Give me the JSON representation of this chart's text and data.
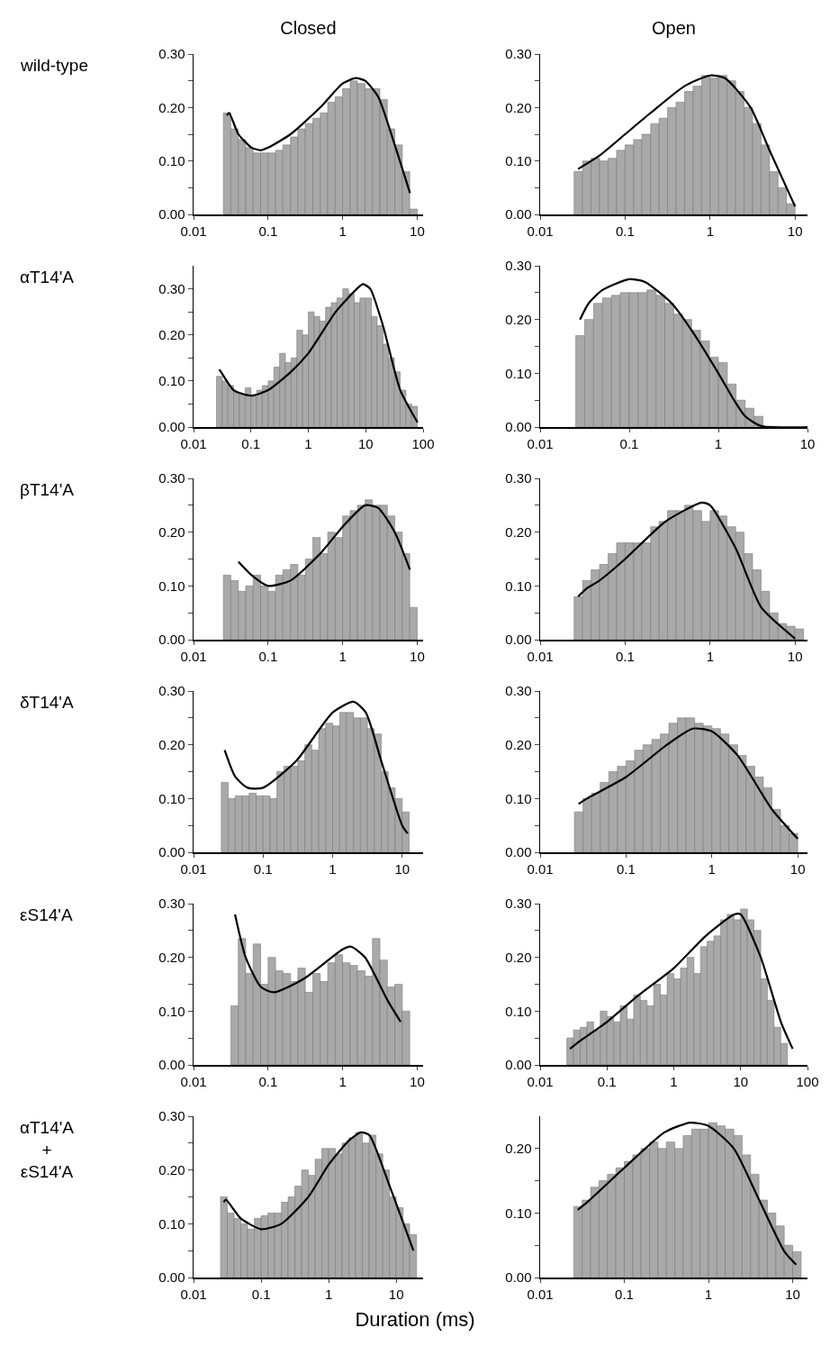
{
  "chart_data": [
    {
      "type": "histogram",
      "title": "Closed",
      "ylabel": "wild-type",
      "log": "x",
      "grid": false,
      "color": "#a9a9a9",
      "bins": [
        0.0251,
        0.0316,
        0.0398,
        0.0501,
        0.0631,
        0.0794,
        0.1,
        0.126,
        0.158,
        0.2,
        0.251,
        0.316,
        0.398,
        0.501,
        0.631,
        0.794,
        1,
        1.26,
        1.58,
        2,
        2.51,
        3.16,
        3.98,
        5.01,
        6.31,
        7.94,
        10
      ],
      "values": [
        0.19,
        0.16,
        0.14,
        0.125,
        0.115,
        0.115,
        0.115,
        0.12,
        0.13,
        0.145,
        0.16,
        0.17,
        0.18,
        0.19,
        0.21,
        0.22,
        0.235,
        0.25,
        0.245,
        0.235,
        0.235,
        0.215,
        0.16,
        0.13,
        0.08,
        0.01
      ],
      "series": [
        {
          "type": "line",
          "color": "#000000",
          "x": [
            0.028,
            0.03,
            0.04,
            0.06,
            0.08,
            0.1,
            0.2,
            0.5,
            1,
            1.5,
            2,
            3,
            5,
            8
          ],
          "values": [
            0.185,
            0.19,
            0.15,
            0.125,
            0.12,
            0.125,
            0.15,
            0.2,
            0.245,
            0.255,
            0.25,
            0.22,
            0.13,
            0.04
          ]
        }
      ],
      "xlim": [
        0.01,
        12
      ],
      "xticks": [
        0.01,
        0.1,
        1,
        10
      ],
      "ylim": [
        0,
        0.3
      ],
      "yticks": [
        {
          "value": 0,
          "label": "0.00"
        },
        {
          "value": 0.05,
          "label": null
        },
        {
          "value": 0.1,
          "label": "0.10"
        },
        {
          "value": 0.15,
          "label": null
        },
        {
          "value": 0.2,
          "label": "0.20"
        },
        {
          "value": 0.25,
          "label": null
        },
        {
          "value": 0.3,
          "label": "0.30"
        }
      ]
    },
    {
      "type": "histogram",
      "title": "Open",
      "log": "x",
      "grid": false,
      "color": "#a9a9a9",
      "bins": [
        0.0251,
        0.0316,
        0.0398,
        0.0501,
        0.0631,
        0.0794,
        0.1,
        0.126,
        0.158,
        0.2,
        0.251,
        0.316,
        0.398,
        0.501,
        0.631,
        0.794,
        1,
        1.26,
        1.58,
        2,
        2.51,
        3.16,
        3.98,
        5.01,
        6.31,
        7.94,
        10
      ],
      "values": [
        0.08,
        0.1,
        0.105,
        0.1,
        0.105,
        0.12,
        0.13,
        0.14,
        0.15,
        0.17,
        0.18,
        0.2,
        0.21,
        0.23,
        0.24,
        0.26,
        0.255,
        0.26,
        0.25,
        0.23,
        0.2,
        0.17,
        0.13,
        0.08,
        0.05,
        0.02
      ],
      "series": [
        {
          "type": "line",
          "color": "#000000",
          "x": [
            0.028,
            0.05,
            0.1,
            0.2,
            0.5,
            1,
            1.5,
            3,
            5,
            10
          ],
          "values": [
            0.085,
            0.11,
            0.15,
            0.19,
            0.24,
            0.26,
            0.255,
            0.2,
            0.12,
            0.015
          ]
        }
      ],
      "xlim": [
        0.01,
        14
      ],
      "xticks": [
        0.01,
        0.1,
        1,
        10
      ],
      "ylim": [
        0,
        0.3
      ],
      "yticks": [
        {
          "value": 0,
          "label": "0.00"
        },
        {
          "value": 0.05,
          "label": null
        },
        {
          "value": 0.1,
          "label": "0.10"
        },
        {
          "value": 0.15,
          "label": null
        },
        {
          "value": 0.2,
          "label": "0.20"
        },
        {
          "value": 0.25,
          "label": null
        },
        {
          "value": 0.3,
          "label": "0.30"
        }
      ]
    },
    {
      "type": "histogram",
      "ylabel": "αT14'A",
      "log": "x",
      "grid": false,
      "color": "#a9a9a9",
      "bins": [
        0.0251,
        0.0316,
        0.0398,
        0.0501,
        0.0631,
        0.0794,
        0.1,
        0.126,
        0.158,
        0.2,
        0.251,
        0.316,
        0.398,
        0.501,
        0.631,
        0.794,
        1,
        1.26,
        1.58,
        2,
        2.51,
        3.16,
        3.98,
        5.01,
        6.31,
        7.94,
        10,
        12.6,
        15.8,
        20,
        25.1,
        31.6,
        39.8,
        50.1,
        63.1,
        79.4
      ],
      "values": [
        0.11,
        0.1,
        0.09,
        0.075,
        0.07,
        0.085,
        0.07,
        0.08,
        0.09,
        0.1,
        0.13,
        0.16,
        0.14,
        0.15,
        0.21,
        0.2,
        0.25,
        0.24,
        0.23,
        0.26,
        0.27,
        0.28,
        0.3,
        0.29,
        0.27,
        0.28,
        0.28,
        0.24,
        0.22,
        0.18,
        0.15,
        0.12,
        0.08,
        0.05,
        0.045
      ],
      "series": [
        {
          "type": "line",
          "color": "#000000",
          "x": [
            0.028,
            0.03,
            0.05,
            0.1,
            0.2,
            0.5,
            1,
            3,
            7,
            9,
            12,
            20,
            40,
            80
          ],
          "values": [
            0.125,
            0.12,
            0.08,
            0.068,
            0.08,
            0.12,
            0.16,
            0.25,
            0.3,
            0.31,
            0.3,
            0.22,
            0.08,
            0.01
          ]
        }
      ],
      "xlim": [
        0.01,
        100
      ],
      "xticks": [
        0.01,
        0.1,
        1,
        10,
        100
      ],
      "ylim": [
        0,
        0.35
      ],
      "yticks": [
        {
          "value": 0,
          "label": "0.00"
        },
        {
          "value": 0.05,
          "label": null
        },
        {
          "value": 0.1,
          "label": "0.10"
        },
        {
          "value": 0.15,
          "label": null
        },
        {
          "value": 0.2,
          "label": "0.20"
        },
        {
          "value": 0.25,
          "label": null
        },
        {
          "value": 0.3,
          "label": "0.30"
        }
      ]
    },
    {
      "type": "histogram",
      "log": "x",
      "grid": false,
      "color": "#a9a9a9",
      "bins": [
        0.0251,
        0.0316,
        0.0398,
        0.0501,
        0.0631,
        0.0794,
        0.1,
        0.126,
        0.158,
        0.2,
        0.251,
        0.316,
        0.398,
        0.501,
        0.631,
        0.794,
        1,
        1.26,
        1.58,
        2,
        2.51,
        3.16
      ],
      "values": [
        0.17,
        0.2,
        0.23,
        0.24,
        0.245,
        0.25,
        0.25,
        0.25,
        0.255,
        0.245,
        0.23,
        0.21,
        0.2,
        0.18,
        0.16,
        0.13,
        0.12,
        0.08,
        0.05,
        0.035,
        0.02
      ],
      "series": [
        {
          "type": "line",
          "color": "#000000",
          "x": [
            0.028,
            0.035,
            0.05,
            0.1,
            0.15,
            0.3,
            0.5,
            1,
            1.5,
            2,
            3,
            10
          ],
          "values": [
            0.2,
            0.23,
            0.255,
            0.275,
            0.27,
            0.23,
            0.18,
            0.1,
            0.05,
            0.02,
            0.002,
            0
          ]
        }
      ],
      "xlim": [
        0.01,
        10
      ],
      "xticks": [
        0.01,
        0.1,
        1,
        10
      ],
      "ylim": [
        0,
        0.3
      ],
      "yticks": [
        {
          "value": 0,
          "label": "0.00"
        },
        {
          "value": 0.05,
          "label": null
        },
        {
          "value": 0.1,
          "label": "0.10"
        },
        {
          "value": 0.15,
          "label": null
        },
        {
          "value": 0.2,
          "label": "0.20"
        },
        {
          "value": 0.25,
          "label": null
        },
        {
          "value": 0.3,
          "label": "0.30"
        }
      ]
    },
    {
      "type": "histogram",
      "ylabel": "βT14'A",
      "log": "x",
      "grid": false,
      "color": "#a9a9a9",
      "bins": [
        0.0251,
        0.0316,
        0.0398,
        0.0501,
        0.0631,
        0.0794,
        0.1,
        0.126,
        0.158,
        0.2,
        0.251,
        0.316,
        0.398,
        0.501,
        0.631,
        0.794,
        1,
        1.26,
        1.58,
        2,
        2.51,
        3.16,
        3.98,
        5.01,
        6.31,
        7.94,
        10
      ],
      "values": [
        0.12,
        0.11,
        0.09,
        0.1,
        0.12,
        0.1,
        0.09,
        0.12,
        0.13,
        0.14,
        0.12,
        0.15,
        0.19,
        0.16,
        0.2,
        0.19,
        0.23,
        0.24,
        0.25,
        0.26,
        0.25,
        0.25,
        0.23,
        0.2,
        0.16,
        0.06
      ],
      "series": [
        {
          "type": "line",
          "color": "#000000",
          "x": [
            0.04,
            0.06,
            0.1,
            0.2,
            0.5,
            1,
            2,
            3,
            5,
            8
          ],
          "values": [
            0.145,
            0.12,
            0.1,
            0.11,
            0.16,
            0.21,
            0.25,
            0.245,
            0.2,
            0.13
          ]
        }
      ],
      "xlim": [
        0.01,
        12
      ],
      "xticks": [
        0.01,
        0.1,
        1,
        10
      ],
      "ylim": [
        0,
        0.3
      ],
      "yticks": [
        {
          "value": 0,
          "label": "0.00"
        },
        {
          "value": 0.05,
          "label": null
        },
        {
          "value": 0.1,
          "label": "0.10"
        },
        {
          "value": 0.15,
          "label": null
        },
        {
          "value": 0.2,
          "label": "0.20"
        },
        {
          "value": 0.25,
          "label": null
        },
        {
          "value": 0.3,
          "label": "0.30"
        }
      ]
    },
    {
      "type": "histogram",
      "log": "x",
      "grid": false,
      "color": "#a9a9a9",
      "bins": [
        0.0251,
        0.0316,
        0.0398,
        0.0501,
        0.0631,
        0.0794,
        0.1,
        0.126,
        0.158,
        0.2,
        0.251,
        0.316,
        0.398,
        0.501,
        0.631,
        0.794,
        1,
        1.26,
        1.58,
        2,
        2.51,
        3.16,
        3.98,
        5.01,
        6.31,
        7.94,
        10,
        12.6
      ],
      "values": [
        0.08,
        0.11,
        0.13,
        0.14,
        0.16,
        0.18,
        0.18,
        0.18,
        0.18,
        0.21,
        0.22,
        0.24,
        0.24,
        0.25,
        0.24,
        0.22,
        0.24,
        0.23,
        0.21,
        0.2,
        0.16,
        0.13,
        0.09,
        0.05,
        0.03,
        0.025,
        0.02
      ],
      "series": [
        {
          "type": "line",
          "color": "#000000",
          "x": [
            0.028,
            0.035,
            0.05,
            0.1,
            0.3,
            0.8,
            1,
            2,
            4,
            10
          ],
          "values": [
            0.08,
            0.095,
            0.11,
            0.15,
            0.22,
            0.255,
            0.25,
            0.17,
            0.06,
            0.002
          ]
        }
      ],
      "xlim": [
        0.01,
        14
      ],
      "xticks": [
        0.01,
        0.1,
        1,
        10
      ],
      "ylim": [
        0,
        0.3
      ],
      "yticks": [
        {
          "value": 0,
          "label": "0.00"
        },
        {
          "value": 0.05,
          "label": null
        },
        {
          "value": 0.1,
          "label": "0.10"
        },
        {
          "value": 0.15,
          "label": null
        },
        {
          "value": 0.2,
          "label": "0.20"
        },
        {
          "value": 0.25,
          "label": null
        },
        {
          "value": 0.3,
          "label": "0.30"
        }
      ]
    },
    {
      "type": "histogram",
      "ylabel": "δT14'A",
      "log": "x",
      "grid": false,
      "color": "#a9a9a9",
      "bins": [
        0.0251,
        0.0316,
        0.0398,
        0.0501,
        0.0631,
        0.0794,
        0.1,
        0.126,
        0.158,
        0.2,
        0.251,
        0.316,
        0.398,
        0.501,
        0.631,
        0.794,
        1,
        1.26,
        1.58,
        2,
        2.51,
        3.16,
        3.98,
        5.01,
        6.31,
        7.94,
        10,
        12.6
      ],
      "values": [
        0.13,
        0.1,
        0.105,
        0.105,
        0.11,
        0.105,
        0.105,
        0.1,
        0.15,
        0.16,
        0.16,
        0.17,
        0.2,
        0.19,
        0.23,
        0.24,
        0.235,
        0.26,
        0.26,
        0.25,
        0.25,
        0.23,
        0.22,
        0.15,
        0.12,
        0.1,
        0.075
      ],
      "series": [
        {
          "type": "line",
          "color": "#000000",
          "x": [
            0.028,
            0.04,
            0.06,
            0.1,
            0.3,
            1,
            2,
            3,
            5,
            10,
            12
          ],
          "values": [
            0.19,
            0.14,
            0.12,
            0.12,
            0.17,
            0.26,
            0.28,
            0.26,
            0.17,
            0.05,
            0.035
          ]
        }
      ],
      "xlim": [
        0.01,
        20
      ],
      "xticks": [
        0.01,
        0.1,
        1,
        10
      ],
      "ylim": [
        0,
        0.3
      ],
      "yticks": [
        {
          "value": 0,
          "label": "0.00"
        },
        {
          "value": 0.05,
          "label": null
        },
        {
          "value": 0.1,
          "label": "0.10"
        },
        {
          "value": 0.15,
          "label": null
        },
        {
          "value": 0.2,
          "label": "0.20"
        },
        {
          "value": 0.25,
          "label": null
        },
        {
          "value": 0.3,
          "label": "0.30"
        }
      ]
    },
    {
      "type": "histogram",
      "log": "x",
      "grid": false,
      "color": "#a9a9a9",
      "bins": [
        0.0251,
        0.0316,
        0.0398,
        0.0501,
        0.0631,
        0.0794,
        0.1,
        0.126,
        0.158,
        0.2,
        0.251,
        0.316,
        0.398,
        0.501,
        0.631,
        0.794,
        1,
        1.26,
        1.58,
        2,
        2.51,
        3.16,
        3.98,
        5.01,
        6.31,
        7.94,
        10
      ],
      "values": [
        0.075,
        0.1,
        0.11,
        0.13,
        0.15,
        0.16,
        0.17,
        0.19,
        0.2,
        0.21,
        0.22,
        0.24,
        0.25,
        0.25,
        0.24,
        0.235,
        0.23,
        0.22,
        0.2,
        0.18,
        0.16,
        0.14,
        0.12,
        0.08,
        0.05,
        0.035
      ],
      "series": [
        {
          "type": "line",
          "color": "#000000",
          "x": [
            0.028,
            0.035,
            0.1,
            0.3,
            0.6,
            1,
            2,
            5,
            10
          ],
          "values": [
            0.09,
            0.1,
            0.14,
            0.2,
            0.23,
            0.225,
            0.18,
            0.08,
            0.025
          ]
        }
      ],
      "xlim": [
        0.01,
        13
      ],
      "xticks": [
        0.01,
        0.1,
        1,
        10
      ],
      "ylim": [
        0,
        0.3
      ],
      "yticks": [
        {
          "value": 0,
          "label": "0.00"
        },
        {
          "value": 0.05,
          "label": null
        },
        {
          "value": 0.1,
          "label": "0.10"
        },
        {
          "value": 0.15,
          "label": null
        },
        {
          "value": 0.2,
          "label": "0.20"
        },
        {
          "value": 0.25,
          "label": null
        },
        {
          "value": 0.3,
          "label": "0.30"
        }
      ]
    },
    {
      "type": "histogram",
      "ylabel": "εS14'A",
      "log": "x",
      "grid": false,
      "color": "#a9a9a9",
      "bins": [
        0.0316,
        0.0398,
        0.0501,
        0.0631,
        0.0794,
        0.1,
        0.126,
        0.158,
        0.2,
        0.251,
        0.316,
        0.398,
        0.501,
        0.631,
        0.794,
        1,
        1.26,
        1.58,
        2,
        2.51,
        3.16,
        3.98,
        5.01,
        6.31,
        7.94
      ],
      "values": [
        0.11,
        0.235,
        0.17,
        0.225,
        0.15,
        0.2,
        0.175,
        0.17,
        0.155,
        0.18,
        0.135,
        0.17,
        0.155,
        0.19,
        0.205,
        0.19,
        0.185,
        0.175,
        0.165,
        0.235,
        0.195,
        0.145,
        0.15,
        0.1
      ],
      "series": [
        {
          "type": "line",
          "color": "#000000",
          "x": [
            0.036,
            0.05,
            0.08,
            0.12,
            0.3,
            1,
            1.3,
            2,
            4,
            6
          ],
          "values": [
            0.28,
            0.2,
            0.145,
            0.135,
            0.16,
            0.215,
            0.22,
            0.2,
            0.12,
            0.08
          ]
        }
      ],
      "xlim": [
        0.01,
        12
      ],
      "xticks": [
        0.01,
        0.1,
        1,
        10
      ],
      "ylim": [
        0,
        0.3
      ],
      "yticks": [
        {
          "value": 0,
          "label": "0.00"
        },
        {
          "value": 0.05,
          "label": null
        },
        {
          "value": 0.1,
          "label": "0.10"
        },
        {
          "value": 0.15,
          "label": null
        },
        {
          "value": 0.2,
          "label": "0.20"
        },
        {
          "value": 0.25,
          "label": null
        },
        {
          "value": 0.3,
          "label": "0.30"
        }
      ]
    },
    {
      "type": "histogram",
      "log": "x",
      "grid": false,
      "color": "#a9a9a9",
      "bins": [
        0.0251,
        0.0316,
        0.0398,
        0.0501,
        0.0631,
        0.0794,
        0.1,
        0.126,
        0.158,
        0.2,
        0.251,
        0.316,
        0.398,
        0.501,
        0.631,
        0.794,
        1,
        1.26,
        1.58,
        2,
        2.51,
        3.16,
        3.98,
        5.01,
        6.31,
        7.94,
        10,
        12.6,
        15.8,
        20,
        25.1,
        31.6,
        39.8,
        50.1
      ],
      "values": [
        0.05,
        0.065,
        0.07,
        0.08,
        0.065,
        0.1,
        0.09,
        0.08,
        0.11,
        0.085,
        0.13,
        0.12,
        0.11,
        0.15,
        0.13,
        0.17,
        0.16,
        0.18,
        0.2,
        0.17,
        0.22,
        0.23,
        0.24,
        0.27,
        0.28,
        0.27,
        0.29,
        0.27,
        0.25,
        0.16,
        0.12,
        0.07,
        0.04
      ],
      "series": [
        {
          "type": "line",
          "color": "#000000",
          "x": [
            0.028,
            0.04,
            0.1,
            0.3,
            1,
            3,
            8,
            10,
            20,
            40,
            60
          ],
          "values": [
            0.03,
            0.045,
            0.08,
            0.13,
            0.18,
            0.24,
            0.28,
            0.28,
            0.2,
            0.08,
            0.03
          ]
        }
      ],
      "xlim": [
        0.01,
        100
      ],
      "xticks": [
        0.01,
        0.1,
        1,
        10,
        100
      ],
      "ylim": [
        0,
        0.3
      ],
      "yticks": [
        {
          "value": 0,
          "label": "0.00"
        },
        {
          "value": 0.05,
          "label": null
        },
        {
          "value": 0.1,
          "label": "0.10"
        },
        {
          "value": 0.15,
          "label": null
        },
        {
          "value": 0.2,
          "label": "0.20"
        },
        {
          "value": 0.25,
          "label": null
        },
        {
          "value": 0.3,
          "label": "0.30"
        }
      ]
    },
    {
      "type": "histogram",
      "ylabel": "αT14'A\n+\nεS14'A",
      "xlabel": "Duration (ms)",
      "log": "x",
      "grid": false,
      "color": "#a9a9a9",
      "bins": [
        0.0251,
        0.0316,
        0.0398,
        0.0501,
        0.0631,
        0.0794,
        0.1,
        0.126,
        0.158,
        0.2,
        0.251,
        0.316,
        0.398,
        0.501,
        0.631,
        0.794,
        1,
        1.26,
        1.58,
        2,
        2.51,
        3.16,
        3.98,
        5.01,
        6.31,
        7.94,
        10,
        12.6,
        15.8,
        20
      ],
      "values": [
        0.15,
        0.12,
        0.11,
        0.1,
        0.09,
        0.11,
        0.115,
        0.12,
        0.12,
        0.14,
        0.15,
        0.17,
        0.2,
        0.19,
        0.22,
        0.24,
        0.24,
        0.23,
        0.25,
        0.26,
        0.27,
        0.25,
        0.265,
        0.23,
        0.2,
        0.15,
        0.13,
        0.1,
        0.08
      ],
      "series": [
        {
          "type": "line",
          "color": "#000000",
          "x": [
            0.028,
            0.03,
            0.05,
            0.1,
            0.2,
            0.5,
            1,
            2,
            3,
            4,
            8,
            18
          ],
          "values": [
            0.14,
            0.145,
            0.11,
            0.09,
            0.1,
            0.15,
            0.21,
            0.255,
            0.27,
            0.265,
            0.17,
            0.05
          ]
        }
      ],
      "xlim": [
        0.01,
        25
      ],
      "xticks": [
        0.01,
        0.1,
        1,
        10
      ],
      "ylim": [
        0,
        0.3
      ],
      "yticks": [
        {
          "value": 0,
          "label": "0.00"
        },
        {
          "value": 0.05,
          "label": null
        },
        {
          "value": 0.1,
          "label": "0.10"
        },
        {
          "value": 0.15,
          "label": null
        },
        {
          "value": 0.2,
          "label": "0.20"
        },
        {
          "value": 0.25,
          "label": null
        },
        {
          "value": 0.3,
          "label": "0.30"
        }
      ]
    },
    {
      "type": "histogram",
      "log": "x",
      "grid": false,
      "color": "#a9a9a9",
      "bins": [
        0.0251,
        0.0316,
        0.0398,
        0.0501,
        0.0631,
        0.0794,
        0.1,
        0.126,
        0.158,
        0.2,
        0.251,
        0.316,
        0.398,
        0.501,
        0.631,
        0.794,
        1,
        1.26,
        1.58,
        2,
        2.51,
        3.16,
        3.98,
        5.01,
        6.31,
        7.94,
        10,
        12.6
      ],
      "values": [
        0.11,
        0.12,
        0.14,
        0.15,
        0.16,
        0.17,
        0.18,
        0.19,
        0.2,
        0.21,
        0.2,
        0.21,
        0.2,
        0.22,
        0.23,
        0.23,
        0.24,
        0.235,
        0.23,
        0.22,
        0.19,
        0.16,
        0.12,
        0.1,
        0.08,
        0.05,
        0.04
      ],
      "series": [
        {
          "type": "line",
          "color": "#000000",
          "x": [
            0.028,
            0.035,
            0.1,
            0.3,
            0.6,
            1,
            2,
            4,
            8,
            11
          ],
          "values": [
            0.105,
            0.115,
            0.17,
            0.225,
            0.24,
            0.235,
            0.2,
            0.12,
            0.04,
            0.02
          ]
        }
      ],
      "xlim": [
        0.01,
        15
      ],
      "xticks": [
        0.01,
        0.1,
        1,
        10
      ],
      "ylim": [
        0,
        0.25
      ],
      "yticks": [
        {
          "value": 0,
          "label": "0.00"
        },
        {
          "value": 0.05,
          "label": null
        },
        {
          "value": 0.1,
          "label": "0.10"
        },
        {
          "value": 0.15,
          "label": null
        },
        {
          "value": 0.2,
          "label": "0.20"
        }
      ]
    }
  ]
}
